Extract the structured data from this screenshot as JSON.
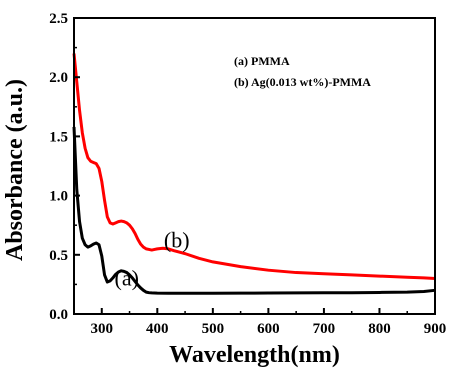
{
  "chart_data": {
    "type": "line",
    "xlabel": "Wavelength(nm)",
    "ylabel": "Absorbance (a.u.)",
    "xlim": [
      250,
      900
    ],
    "ylim": [
      0.0,
      2.5
    ],
    "xticks": [
      "300",
      "400",
      "500",
      "600",
      "700",
      "800",
      "900"
    ],
    "yticks": [
      "0.0",
      "0.5",
      "1.0",
      "1.5",
      "2.0",
      "2.5"
    ],
    "grid": false,
    "legend_entries": [
      {
        "text": "(a) PMMA"
      },
      {
        "text": "(b) Ag(0.013 wt%)-PMMA"
      }
    ],
    "legend_placement": "top-right",
    "annotations": [
      {
        "text": "(b)",
        "x": 435,
        "y": 0.63
      },
      {
        "text": "(a)",
        "x": 345,
        "y": 0.31
      }
    ],
    "series": [
      {
        "label": "(a)",
        "color": "#000000",
        "x": [
          250,
          255,
          260,
          265,
          270,
          275,
          280,
          285,
          290,
          295,
          300,
          305,
          310,
          315,
          320,
          325,
          330,
          335,
          340,
          345,
          350,
          355,
          360,
          365,
          370,
          375,
          380,
          385,
          390,
          395,
          400,
          420,
          450,
          500,
          550,
          600,
          650,
          700,
          750,
          800,
          850,
          880,
          900
        ],
        "y": [
          1.58,
          1.05,
          0.78,
          0.64,
          0.585,
          0.565,
          0.575,
          0.59,
          0.6,
          0.585,
          0.49,
          0.33,
          0.27,
          0.28,
          0.305,
          0.335,
          0.355,
          0.365,
          0.36,
          0.35,
          0.33,
          0.305,
          0.275,
          0.245,
          0.22,
          0.2,
          0.185,
          0.18,
          0.178,
          0.177,
          0.176,
          0.175,
          0.175,
          0.175,
          0.176,
          0.177,
          0.178,
          0.18,
          0.18,
          0.182,
          0.185,
          0.19,
          0.2
        ]
      },
      {
        "label": "(b)",
        "color": "#ff0000",
        "x": [
          250,
          255,
          260,
          265,
          270,
          275,
          280,
          285,
          290,
          295,
          300,
          305,
          310,
          315,
          320,
          325,
          330,
          335,
          340,
          345,
          350,
          355,
          360,
          365,
          370,
          375,
          380,
          385,
          390,
          395,
          400,
          410,
          420,
          430,
          450,
          475,
          500,
          525,
          550,
          600,
          650,
          700,
          750,
          800,
          850,
          880,
          900
        ],
        "y": [
          2.2,
          1.96,
          1.72,
          1.53,
          1.4,
          1.32,
          1.29,
          1.28,
          1.27,
          1.23,
          1.12,
          0.96,
          0.82,
          0.77,
          0.76,
          0.77,
          0.78,
          0.785,
          0.78,
          0.77,
          0.75,
          0.72,
          0.68,
          0.63,
          0.59,
          0.565,
          0.55,
          0.545,
          0.54,
          0.545,
          0.55,
          0.555,
          0.55,
          0.535,
          0.51,
          0.47,
          0.44,
          0.42,
          0.4,
          0.37,
          0.35,
          0.34,
          0.33,
          0.32,
          0.31,
          0.305,
          0.3
        ]
      }
    ]
  }
}
